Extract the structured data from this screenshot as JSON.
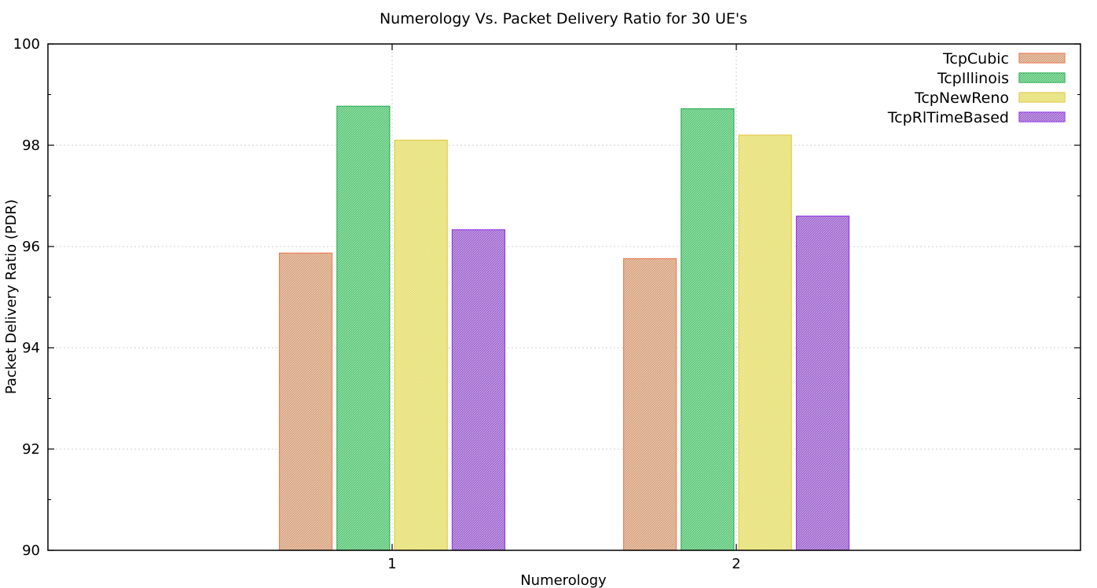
{
  "chart_data": {
    "type": "bar",
    "title": "Numerology Vs. Packet Delivery Ratio for 30 UE's",
    "xlabel": "Numerology",
    "ylabel": "Packet Delivery Ratio (PDR)",
    "categories": [
      "1",
      "2"
    ],
    "ylim": [
      90,
      100
    ],
    "yticks": [
      90,
      92,
      94,
      96,
      98,
      100
    ],
    "grid": true,
    "legend_position": "top-right",
    "series": [
      {
        "name": "TcpCubic",
        "values": [
          95.87,
          95.76
        ],
        "color": "#d8a47f",
        "stroke": "#e8734a"
      },
      {
        "name": "TcpIllinois",
        "values": [
          98.77,
          98.72
        ],
        "color": "#5cc878",
        "stroke": "#1fa84a"
      },
      {
        "name": "TcpNewReno",
        "values": [
          98.1,
          98.2
        ],
        "color": "#e6e070",
        "stroke": "#e0c440"
      },
      {
        "name": "TcpRlTimeBased",
        "values": [
          96.33,
          96.6
        ],
        "color": "#a068d0",
        "stroke": "#8a2be2"
      }
    ]
  }
}
